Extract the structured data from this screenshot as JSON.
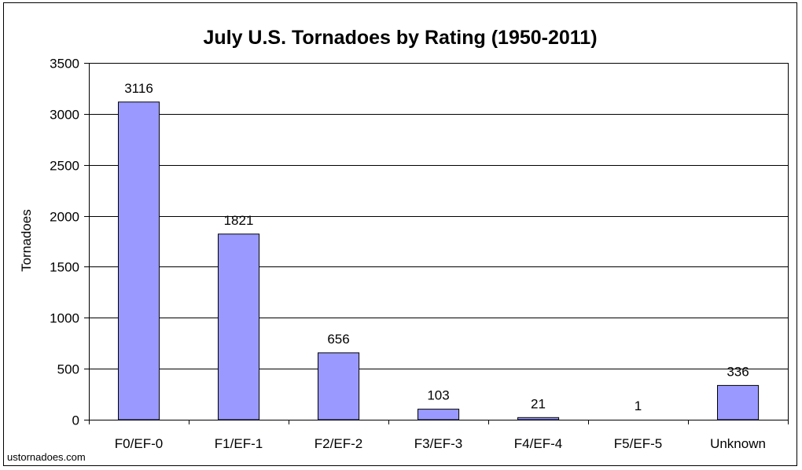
{
  "chart_data": {
    "type": "bar",
    "title": "July U.S. Tornadoes by Rating (1950-2011)",
    "xlabel": "",
    "ylabel": "Tornadoes",
    "categories": [
      "F0/EF-0",
      "F1/EF-1",
      "F2/EF-2",
      "F3/EF-3",
      "F4/EF-4",
      "F5/EF-5",
      "Unknown"
    ],
    "values": [
      3116,
      1821,
      656,
      103,
      21,
      1,
      336
    ],
    "data_labels": [
      "3116",
      "1821",
      "656",
      "103",
      "21",
      "1",
      "336"
    ],
    "ylim": [
      0,
      3500
    ],
    "yticks": [
      0,
      500,
      1000,
      1500,
      2000,
      2500,
      3000,
      3500
    ],
    "ytick_labels": [
      "0",
      "500",
      "1000",
      "1500",
      "2000",
      "2500",
      "3000",
      "3500"
    ],
    "grid": true,
    "legend": "none",
    "bar_color": "#9999ff",
    "bar_edge_color": "#000000"
  },
  "source": "ustornadoes.com"
}
